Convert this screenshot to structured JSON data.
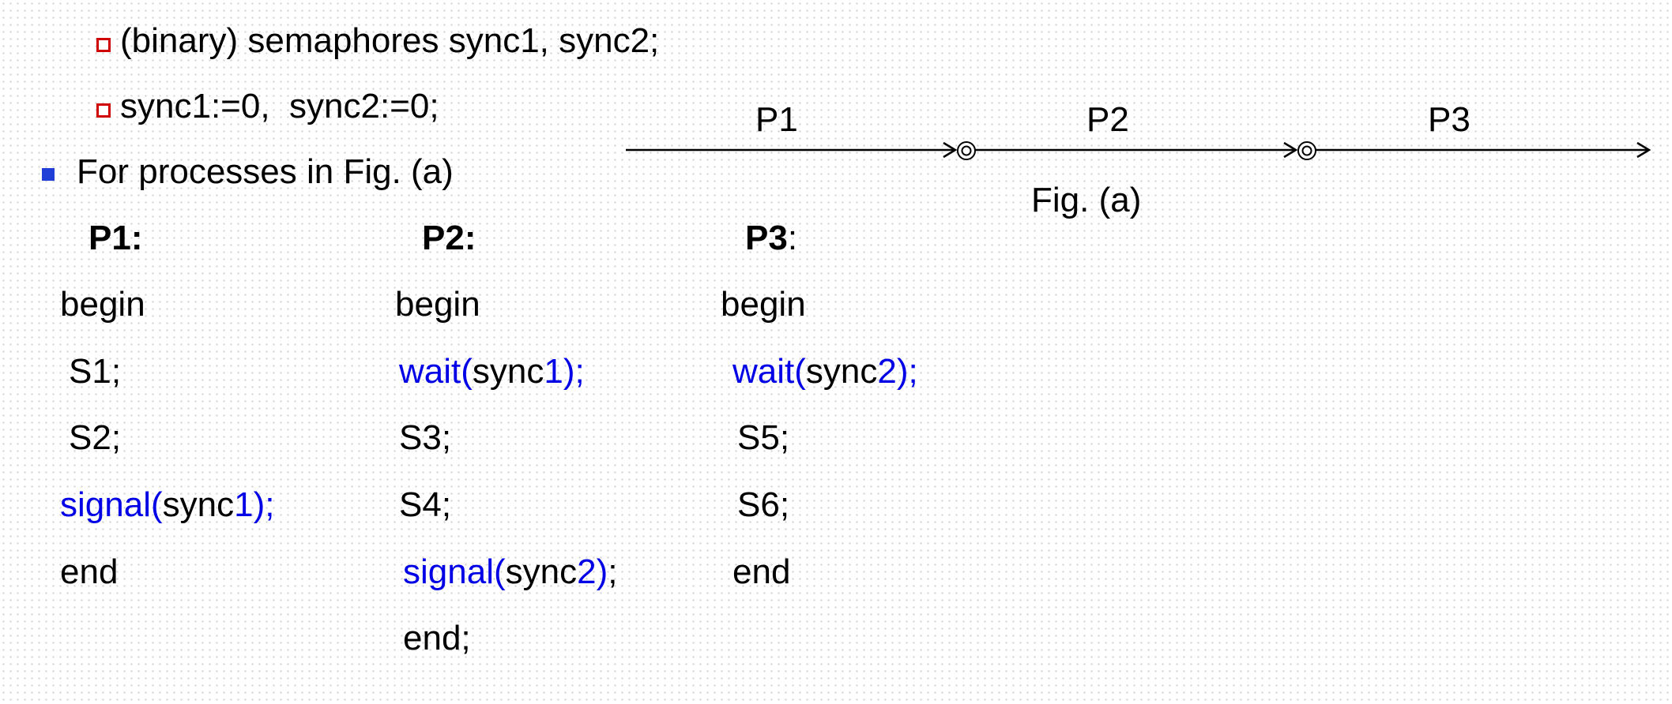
{
  "intro": {
    "semaphores_line": "(binary) semaphores sync1, sync2;",
    "init_line": "sync1:=0,  sync2:=0;",
    "processes_line": "For processes in Fig. (a)"
  },
  "figure": {
    "caption": "Fig. (a)",
    "segments": [
      "P1",
      "P2",
      "P3"
    ]
  },
  "processes": [
    {
      "header_name": "P1:",
      "header_colon": "",
      "lines": [
        {
          "parts": [
            {
              "text": "begin",
              "color": "black"
            }
          ]
        },
        {
          "parts": [
            {
              "text": "S1;",
              "color": "black"
            }
          ]
        },
        {
          "parts": [
            {
              "text": "S2;",
              "color": "black"
            }
          ]
        },
        {
          "parts": [
            {
              "text": "signal(",
              "color": "blue"
            },
            {
              "text": "sync",
              "color": "black"
            },
            {
              "text": "1);",
              "color": "blue"
            }
          ]
        },
        {
          "parts": [
            {
              "text": "end",
              "color": "black"
            }
          ]
        }
      ]
    },
    {
      "header_name": "P2:",
      "header_colon": "",
      "lines": [
        {
          "parts": [
            {
              "text": "begin",
              "color": "black"
            }
          ]
        },
        {
          "parts": [
            {
              "text": "wait(",
              "color": "blue"
            },
            {
              "text": "sync",
              "color": "black"
            },
            {
              "text": "1);",
              "color": "blue"
            }
          ]
        },
        {
          "parts": [
            {
              "text": "S3;",
              "color": "black"
            }
          ]
        },
        {
          "parts": [
            {
              "text": "S4;",
              "color": "black"
            }
          ]
        },
        {
          "parts": [
            {
              "text": "signal(",
              "color": "blue"
            },
            {
              "text": "sync",
              "color": "black"
            },
            {
              "text": "2)",
              "color": "blue"
            },
            {
              "text": ";",
              "color": "black"
            }
          ]
        },
        {
          "parts": [
            {
              "text": "end;",
              "color": "black"
            }
          ]
        }
      ]
    },
    {
      "header_name": "P3",
      "header_colon": ":",
      "lines": [
        {
          "parts": [
            {
              "text": "begin",
              "color": "black"
            }
          ]
        },
        {
          "parts": [
            {
              "text": "wait(",
              "color": "blue"
            },
            {
              "text": "sync",
              "color": "black"
            },
            {
              "text": "2);",
              "color": "blue"
            }
          ]
        },
        {
          "parts": [
            {
              "text": "S5;",
              "color": "black"
            }
          ]
        },
        {
          "parts": [
            {
              "text": "S6;",
              "color": "black"
            }
          ]
        },
        {
          "parts": [
            {
              "text": "end",
              "color": "black"
            }
          ]
        }
      ]
    }
  ]
}
